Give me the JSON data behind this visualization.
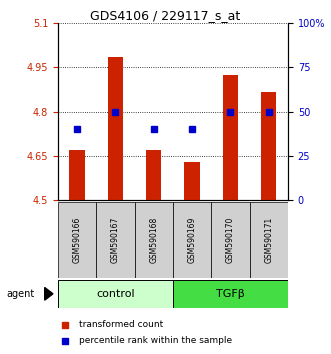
{
  "title": "GDS4106 / 229117_s_at",
  "samples": [
    "GSM590166",
    "GSM590167",
    "GSM590168",
    "GSM590169",
    "GSM590170",
    "GSM590171"
  ],
  "group_labels": [
    "control",
    "TGFβ"
  ],
  "bar_values": [
    4.67,
    4.985,
    4.67,
    4.63,
    4.925,
    4.865
  ],
  "percentile_values": [
    40,
    50,
    40,
    40,
    50,
    50
  ],
  "ylim_left": [
    4.5,
    5.1
  ],
  "ylim_right": [
    0,
    100
  ],
  "yticks_left": [
    4.5,
    4.65,
    4.8,
    4.95,
    5.1
  ],
  "yticks_right": [
    0,
    25,
    50,
    75,
    100
  ],
  "ytick_labels_right": [
    "0",
    "25",
    "50",
    "75",
    "100%"
  ],
  "bar_color": "#cc2200",
  "percentile_color": "#0000cc",
  "bar_width": 0.4,
  "percentile_marker_size": 4,
  "group_control_color": "#ccffcc",
  "group_tgfb_color": "#44dd44",
  "grid_color": "#000000",
  "title_fontsize": 9,
  "tick_fontsize": 7,
  "sample_fontsize": 5.5,
  "group_fontsize": 8,
  "legend_fontsize": 6.5,
  "agent_fontsize": 7,
  "xlabel_color_left": "#cc2200",
  "xlabel_color_right": "#0000cc",
  "baseline": 4.5
}
